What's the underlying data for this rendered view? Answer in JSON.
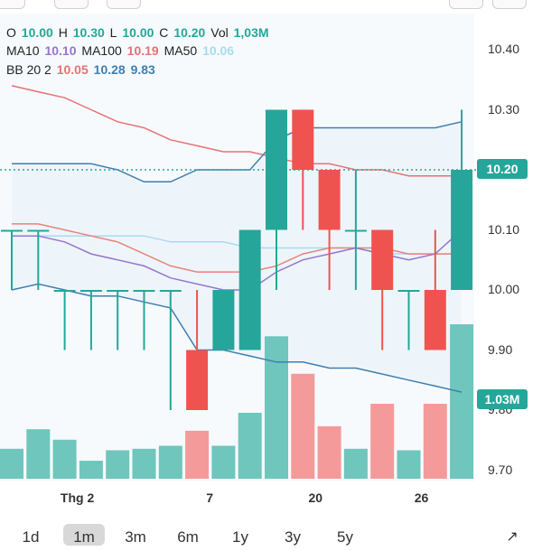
{
  "legend": {
    "o_label": "O",
    "o": "10.00",
    "h_label": "H",
    "h": "10.30",
    "l_label": "L",
    "l": "10.00",
    "c_label": "C",
    "c": "10.20",
    "vol_label": "Vol",
    "vol": "1,03M",
    "ma10_label": "MA10",
    "ma10": "10.10",
    "ma100_label": "MA100",
    "ma100": "10.19",
    "ma50_label": "MA50",
    "ma50": "10.06",
    "bb_label": "BB 20 2",
    "bb_mid": "10.05",
    "bb_up": "10.28",
    "bb_low": "9.83"
  },
  "last_price_badge": "10.20",
  "volume_badge": "1.03M",
  "toolbar": {
    "ranges": [
      "1d",
      "1m",
      "3m",
      "6m",
      "1y",
      "3y",
      "5y"
    ],
    "active": "1m",
    "expand_icon": "expand-icon"
  },
  "colors": {
    "up": "#26a69a",
    "down": "#ef5350",
    "up_vol": "#6ec6bd",
    "down_vol": "#f59a9a",
    "ma10": "#9575cd",
    "ma100": "#e57373",
    "ma50": "#a7dcf0",
    "bb": "#3f7fae",
    "bb_fill": "#eef5fa"
  },
  "chart_data": {
    "type": "candlestick",
    "title": "",
    "ylim": [
      9.65,
      10.45
    ],
    "yticks": [
      "10.40",
      "10.30",
      "10.20",
      "10.10",
      "10.00",
      "9.90",
      "9.80",
      "9.70"
    ],
    "xticks": [
      {
        "label": "Thg 2",
        "index": 2
      },
      {
        "label": "7",
        "index": 7
      },
      {
        "label": "20",
        "index": 11
      },
      {
        "label": "26",
        "index": 15
      }
    ],
    "candles": [
      {
        "o": 10.1,
        "h": 10.1,
        "l": 10.0,
        "c": 10.1
      },
      {
        "o": 10.1,
        "h": 10.1,
        "l": 10.0,
        "c": 10.1
      },
      {
        "o": 10.0,
        "h": 10.0,
        "l": 9.9,
        "c": 10.0
      },
      {
        "o": 10.0,
        "h": 10.0,
        "l": 9.9,
        "c": 10.0
      },
      {
        "o": 10.0,
        "h": 10.0,
        "l": 9.9,
        "c": 10.0
      },
      {
        "o": 10.0,
        "h": 10.0,
        "l": 9.9,
        "c": 10.0
      },
      {
        "o": 10.0,
        "h": 10.0,
        "l": 9.8,
        "c": 10.0
      },
      {
        "o": 9.9,
        "h": 10.0,
        "l": 9.8,
        "c": 9.8
      },
      {
        "o": 9.9,
        "h": 10.0,
        "l": 9.9,
        "c": 10.0
      },
      {
        "o": 9.9,
        "h": 10.1,
        "l": 9.9,
        "c": 10.1
      },
      {
        "o": 10.1,
        "h": 10.3,
        "l": 10.0,
        "c": 10.3
      },
      {
        "o": 10.3,
        "h": 10.3,
        "l": 10.1,
        "c": 10.2
      },
      {
        "o": 10.2,
        "h": 10.2,
        "l": 10.0,
        "c": 10.1
      },
      {
        "o": 10.1,
        "h": 10.2,
        "l": 10.0,
        "c": 10.1
      },
      {
        "o": 10.1,
        "h": 10.1,
        "l": 9.9,
        "c": 10.0
      },
      {
        "o": 10.0,
        "h": 10.0,
        "l": 9.9,
        "c": 10.0
      },
      {
        "o": 10.0,
        "h": 10.1,
        "l": 9.9,
        "c": 9.9
      },
      {
        "o": 10.0,
        "h": 10.3,
        "l": 10.0,
        "c": 10.2
      }
    ],
    "volume": [
      0.2,
      0.33,
      0.26,
      0.12,
      0.19,
      0.2,
      0.22,
      0.32,
      0.22,
      0.44,
      0.95,
      0.7,
      0.35,
      0.2,
      0.5,
      0.19,
      0.5,
      1.03
    ],
    "volume_max": 1.1,
    "bb_upper": [
      10.21,
      10.21,
      10.21,
      10.21,
      10.2,
      10.18,
      10.18,
      10.2,
      10.2,
      10.2,
      10.25,
      10.27,
      10.27,
      10.27,
      10.27,
      10.27,
      10.27,
      10.28
    ],
    "bb_lower": [
      10.0,
      10.01,
      10.0,
      9.99,
      9.99,
      9.98,
      9.97,
      9.9,
      9.9,
      9.89,
      9.88,
      9.88,
      9.87,
      9.87,
      9.86,
      9.85,
      9.84,
      9.83
    ],
    "ma10": [
      10.09,
      10.09,
      10.08,
      10.06,
      10.05,
      10.04,
      10.02,
      10.01,
      10.0,
      10.0,
      10.03,
      10.05,
      10.06,
      10.07,
      10.06,
      10.05,
      10.06,
      10.1
    ],
    "ma100": [
      10.34,
      10.33,
      10.32,
      10.3,
      10.28,
      10.27,
      10.25,
      10.24,
      10.23,
      10.23,
      10.22,
      10.21,
      10.21,
      10.2,
      10.2,
      10.19,
      10.19,
      10.19
    ],
    "ma50": [
      10.09,
      10.09,
      10.09,
      10.09,
      10.09,
      10.09,
      10.08,
      10.08,
      10.08,
      10.07,
      10.07,
      10.07,
      10.07,
      10.07,
      10.06,
      10.06,
      10.06,
      10.06
    ],
    "ma_extra": [
      10.11,
      10.11,
      10.1,
      10.09,
      10.08,
      10.06,
      10.04,
      10.03,
      10.03,
      10.03,
      10.04,
      10.06,
      10.07,
      10.07,
      10.07,
      10.06,
      10.06,
      10.06
    ]
  }
}
